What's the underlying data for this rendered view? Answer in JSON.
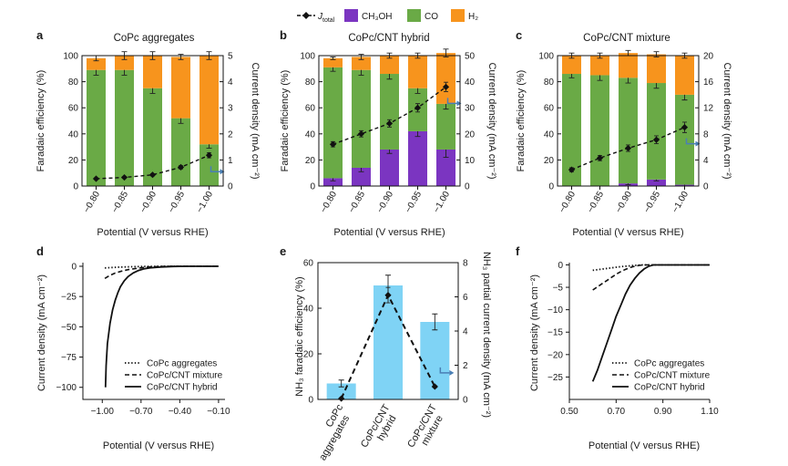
{
  "legend": {
    "items": [
      {
        "key": "total",
        "label": "J",
        "sub": "total",
        "color": "#111111"
      },
      {
        "key": "ch3oh",
        "label": "CH₃OH",
        "color": "#7b35c1"
      },
      {
        "key": "co",
        "label": "CO",
        "color": "#6aaa46"
      },
      {
        "key": "h2",
        "label": "H₂",
        "color": "#f7941d"
      }
    ]
  },
  "chart_data": [
    {
      "panel": "a",
      "type": "bar",
      "stacked": true,
      "title": "CoPc aggregates",
      "categories": [
        "-0.80",
        "-0.85",
        "-0.90",
        "-0.95",
        "-1.00"
      ],
      "xlabel": "Potential (V versus RHE)",
      "ylabel": "Faradaic efficiency (%)",
      "y2label": "Current density (mA cm⁻²)",
      "ylim": [
        0,
        100
      ],
      "yticks": [
        0,
        20,
        40,
        60,
        80,
        100
      ],
      "y2lim": [
        0,
        5
      ],
      "y2ticks": [
        0,
        1,
        2,
        3,
        4,
        5
      ],
      "series": [
        {
          "name": "CH₃OH",
          "values": [
            0,
            0,
            0,
            0,
            0
          ],
          "color": "#7b35c1"
        },
        {
          "name": "CO",
          "values": [
            89,
            89,
            75,
            52,
            32
          ],
          "color": "#6aaa46",
          "err": [
            4,
            4,
            4,
            4,
            3
          ]
        },
        {
          "name": "H₂",
          "values": [
            9,
            11,
            25,
            47,
            68
          ],
          "color": "#f7941d",
          "err": [
            2,
            3,
            3,
            2,
            3
          ]
        }
      ],
      "line": {
        "name": "J total",
        "values": [
          0.28,
          0.33,
          0.43,
          0.72,
          1.18
        ],
        "err": [
          0.03,
          0.03,
          0.04,
          0.06,
          0.1
        ]
      }
    },
    {
      "panel": "b",
      "type": "bar",
      "stacked": true,
      "title": "CoPc/CNT hybrid",
      "categories": [
        "-0.80",
        "-0.85",
        "-0.90",
        "-0.95",
        "-1.00"
      ],
      "xlabel": "Potential (V versus RHE)",
      "ylabel": "Faradaic efficiency (%)",
      "y2label": "Current density (mA cm⁻²)",
      "ylim": [
        0,
        100
      ],
      "yticks": [
        0,
        20,
        40,
        60,
        80,
        100
      ],
      "y2lim": [
        0,
        50
      ],
      "y2ticks": [
        0,
        10,
        20,
        30,
        40,
        50
      ],
      "series": [
        {
          "name": "CH₃OH",
          "values": [
            6,
            14,
            28,
            42,
            28
          ],
          "color": "#7b35c1",
          "err": [
            2,
            3,
            3,
            4,
            6
          ]
        },
        {
          "name": "CO",
          "values": [
            85,
            75,
            58,
            33,
            35
          ],
          "color": "#6aaa46",
          "err": [
            3,
            4,
            4,
            4,
            4
          ]
        },
        {
          "name": "H₂",
          "values": [
            7,
            10,
            14,
            25,
            39
          ],
          "color": "#f7941d",
          "err": [
            1,
            2,
            2,
            2,
            3
          ]
        }
      ],
      "line": {
        "name": "J total",
        "values": [
          16,
          20,
          24,
          30,
          38
        ],
        "err": [
          1,
          1.2,
          1.4,
          1.6,
          1.8
        ]
      }
    },
    {
      "panel": "c",
      "type": "bar",
      "stacked": true,
      "title": "CoPc/CNT mixture",
      "categories": [
        "-0.80",
        "-0.85",
        "-0.90",
        "-0.95",
        "-1.00"
      ],
      "xlabel": "Potential (V versus RHE)",
      "ylabel": "Faradaic efficiency (%)",
      "y2label": "Current density (mA cm⁻²)",
      "ylim": [
        0,
        100
      ],
      "yticks": [
        0,
        20,
        40,
        60,
        80,
        100
      ],
      "y2lim": [
        0,
        20
      ],
      "y2ticks": [
        0,
        4,
        8,
        12,
        16,
        20
      ],
      "series": [
        {
          "name": "CH₃OH",
          "values": [
            0,
            0,
            2,
            5,
            1
          ],
          "color": "#7b35c1",
          "err": [
            0,
            0,
            1,
            1,
            1
          ]
        },
        {
          "name": "CO",
          "values": [
            86,
            85,
            81,
            74,
            69
          ],
          "color": "#6aaa46",
          "err": [
            3,
            4,
            4,
            4,
            4
          ]
        },
        {
          "name": "H₂",
          "values": [
            14,
            15,
            19,
            22,
            30
          ],
          "color": "#f7941d",
          "err": [
            2,
            2,
            2,
            2,
            2
          ]
        }
      ],
      "line": {
        "name": "J total",
        "values": [
          2.5,
          4.3,
          5.8,
          7.1,
          9.0
        ],
        "err": [
          0.3,
          0.4,
          0.5,
          0.6,
          0.8
        ]
      }
    },
    {
      "panel": "d",
      "type": "line",
      "xlabel": "Potential (V versus RHE)",
      "ylabel": "Current density (mA cm⁻²)",
      "xlim": [
        -1.15,
        -0.05
      ],
      "ylim": [
        -110,
        3
      ],
      "xticks": [
        -1.0,
        -0.7,
        -0.4,
        -0.1
      ],
      "xticklabels": [
        "-1.00",
        "-0.70",
        "-0.40",
        "-0.10"
      ],
      "yticks": [
        0,
        -25,
        -50,
        -75,
        -100
      ],
      "legend_position": "bottom-right",
      "series": [
        {
          "name": "CoPc aggregates",
          "style": "dotted",
          "x": [
            -0.98,
            -0.92,
            -0.86,
            -0.8,
            -0.74,
            -0.68,
            -0.6,
            -0.5,
            -0.1
          ],
          "y": [
            -1.4,
            -1.0,
            -0.7,
            -0.45,
            -0.3,
            -0.18,
            -0.08,
            0,
            0
          ]
        },
        {
          "name": "CoPc/CNT mixture",
          "style": "dashed",
          "x": [
            -0.98,
            -0.94,
            -0.9,
            -0.85,
            -0.8,
            -0.74,
            -0.68,
            -0.62,
            -0.55,
            -0.45,
            -0.1
          ],
          "y": [
            -10,
            -7.5,
            -5.6,
            -4,
            -2.8,
            -1.8,
            -1.0,
            -0.5,
            -0.2,
            0,
            0
          ]
        },
        {
          "name": "CoPc/CNT hybrid",
          "style": "solid",
          "x": [
            -0.975,
            -0.97,
            -0.96,
            -0.94,
            -0.92,
            -0.9,
            -0.88,
            -0.86,
            -0.83,
            -0.8,
            -0.76,
            -0.72,
            -0.68,
            -0.63,
            -0.55,
            -0.45,
            -0.35,
            -0.1
          ],
          "y": [
            -100,
            -82,
            -64,
            -47,
            -36,
            -28,
            -22,
            -17,
            -12,
            -8.5,
            -5.5,
            -3.5,
            -2.2,
            -1.3,
            -0.6,
            -0.2,
            0,
            0
          ]
        }
      ]
    },
    {
      "panel": "e",
      "type": "bar",
      "categories": [
        "CoPc aggregates",
        "CoPc/CNT hybrid",
        "CoPc/CNT mixture"
      ],
      "category_lines": [
        [
          "CoPc",
          "aggregates"
        ],
        [
          "CoPc/CNT",
          "hybrid"
        ],
        [
          "CoPc/CNT",
          "mixture"
        ]
      ],
      "ylabel": "NH₃ faradaic efficiency (%)",
      "y2label": "NH₃ partial current density (mA cm⁻²)",
      "ylim": [
        0,
        60
      ],
      "yticks": [
        0,
        20,
        40,
        60
      ],
      "y2lim": [
        0,
        8
      ],
      "y2ticks": [
        0,
        2,
        4,
        6,
        8
      ],
      "bar_color": "#7fd3f5",
      "values": [
        7,
        50,
        34
      ],
      "err": [
        1.5,
        4.5,
        3.5
      ],
      "line": {
        "name": "NH₃ partial current density",
        "values": [
          0.05,
          6.1,
          0.75
        ],
        "err": [
          0.05,
          0.45,
          0.05
        ]
      }
    },
    {
      "panel": "f",
      "type": "line",
      "xlabel": "Potential (V versus RHE)",
      "ylabel": "Current density (mA cm⁻²)",
      "xlim": [
        0.5,
        1.1
      ],
      "ylim": [
        -30,
        0.5
      ],
      "xticks": [
        0.5,
        0.7,
        0.9,
        1.1
      ],
      "xticklabels": [
        "0.50",
        "0.70",
        "0.90",
        "1.10"
      ],
      "yticks": [
        0,
        -5,
        -10,
        -15,
        -20,
        -25
      ],
      "legend_position": "bottom-right",
      "series": [
        {
          "name": "CoPc aggregates",
          "style": "dotted",
          "x": [
            0.6,
            0.63,
            0.66,
            0.69,
            0.72,
            0.75,
            0.78,
            0.81,
            1.1
          ],
          "y": [
            -1.2,
            -1.0,
            -0.8,
            -0.6,
            -0.4,
            -0.25,
            -0.1,
            0,
            0
          ]
        },
        {
          "name": "CoPc/CNT mixture",
          "style": "dashed",
          "x": [
            0.6,
            0.62,
            0.64,
            0.66,
            0.68,
            0.7,
            0.72,
            0.74,
            0.76,
            0.78,
            0.8,
            0.82,
            1.1
          ],
          "y": [
            -5.6,
            -4.9,
            -4.2,
            -3.5,
            -2.8,
            -2.1,
            -1.5,
            -1.0,
            -0.6,
            -0.3,
            -0.1,
            0,
            0
          ]
        },
        {
          "name": "CoPc/CNT hybrid",
          "style": "solid",
          "x": [
            0.6,
            0.62,
            0.64,
            0.66,
            0.68,
            0.7,
            0.72,
            0.74,
            0.76,
            0.78,
            0.8,
            0.82,
            0.84,
            0.86,
            1.1
          ],
          "y": [
            -26,
            -23.5,
            -20.5,
            -17.5,
            -14.5,
            -11.5,
            -9,
            -6.5,
            -4.5,
            -3,
            -1.8,
            -0.9,
            -0.3,
            0,
            0
          ]
        }
      ]
    }
  ]
}
